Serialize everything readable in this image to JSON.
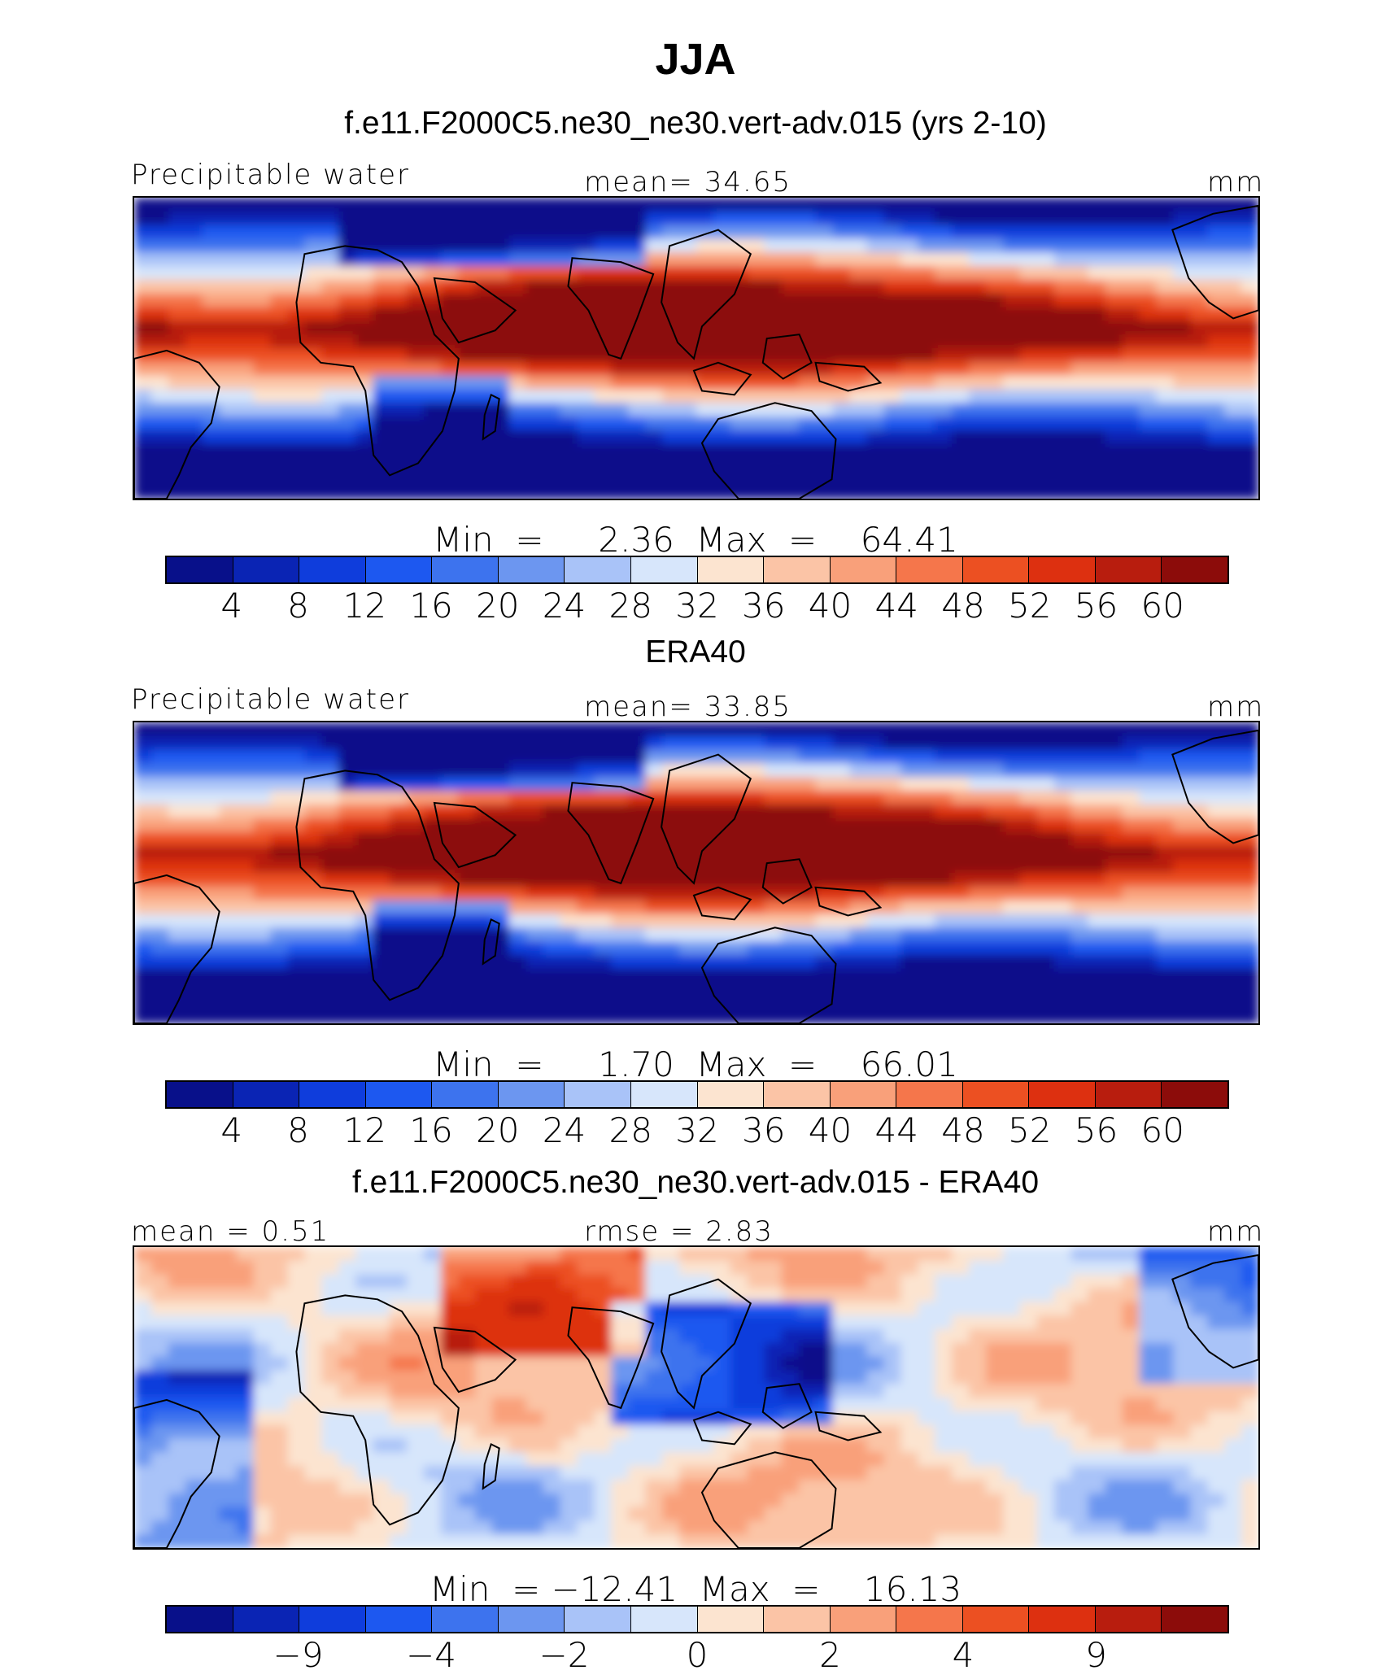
{
  "title": "JJA",
  "palette": [
    "#08108a",
    "#0a24b4",
    "#0f3ddc",
    "#1d58f0",
    "#3d73ee",
    "#6c96f0",
    "#a9c3f8",
    "#d7e6fb",
    "#fce4d0",
    "#fbc4a6",
    "#f9a07a",
    "#f5764b",
    "#ec5022",
    "#dd3010",
    "#b81d0e",
    "#8c0c0a"
  ],
  "panels": [
    {
      "title": "f.e11.F2000C5.ne30_ne30.vert-adv.015 (yrs 2-10)",
      "left_label": "Precipitable water",
      "center_label": "mean=   34.65",
      "units": "mm",
      "minmax": "Min  =     2.36  Max  =    64.41",
      "tick_labels": [
        "4",
        "8",
        "12",
        "16",
        "20",
        "24",
        "28",
        "32",
        "36",
        "40",
        "44",
        "48",
        "52",
        "56",
        "60"
      ],
      "map_kind": "field"
    },
    {
      "title": "ERA40",
      "left_label": "Precipitable water",
      "center_label": "mean=   33.85",
      "units": "mm",
      "minmax": "Min  =     1.70  Max  =    66.01",
      "tick_labels": [
        "4",
        "8",
        "12",
        "16",
        "20",
        "24",
        "28",
        "32",
        "36",
        "40",
        "44",
        "48",
        "52",
        "56",
        "60"
      ],
      "map_kind": "field"
    },
    {
      "title": "f.e11.F2000C5.ne30_ne30.vert-adv.015 - ERA40",
      "left_label": "mean  =    0.51",
      "center_label": "rmse  =    2.83",
      "units": "mm",
      "minmax": "Min  = −12.41  Max  =    16.13",
      "tick_labels": [
        "−9",
        "−4",
        "−2",
        "0",
        "2",
        "4",
        "9"
      ],
      "map_kind": "diff"
    }
  ],
  "chart_data": [
    {
      "type": "heatmap",
      "title": "f.e11.F2000C5.ne30_ne30.vert-adv.015 (yrs 2-10)",
      "variable": "Precipitable water",
      "units": "mm",
      "mean": 34.65,
      "min": 2.36,
      "max": 64.41,
      "contour_levels": [
        4,
        8,
        12,
        16,
        20,
        24,
        28,
        32,
        36,
        40,
        44,
        48,
        52,
        56,
        60
      ]
    },
    {
      "type": "heatmap",
      "title": "ERA40",
      "variable": "Precipitable water",
      "units": "mm",
      "mean": 33.85,
      "min": 1.7,
      "max": 66.01,
      "contour_levels": [
        4,
        8,
        12,
        16,
        20,
        24,
        28,
        32,
        36,
        40,
        44,
        48,
        52,
        56,
        60
      ]
    },
    {
      "type": "heatmap",
      "title": "f.e11.F2000C5.ne30_ne30.vert-adv.015 - ERA40",
      "units": "mm",
      "mean": 0.51,
      "rmse": 2.83,
      "min": -12.41,
      "max": 16.13,
      "tick_labels": [
        "−9",
        "−4",
        "−2",
        "0",
        "2",
        "4",
        "9"
      ]
    }
  ]
}
